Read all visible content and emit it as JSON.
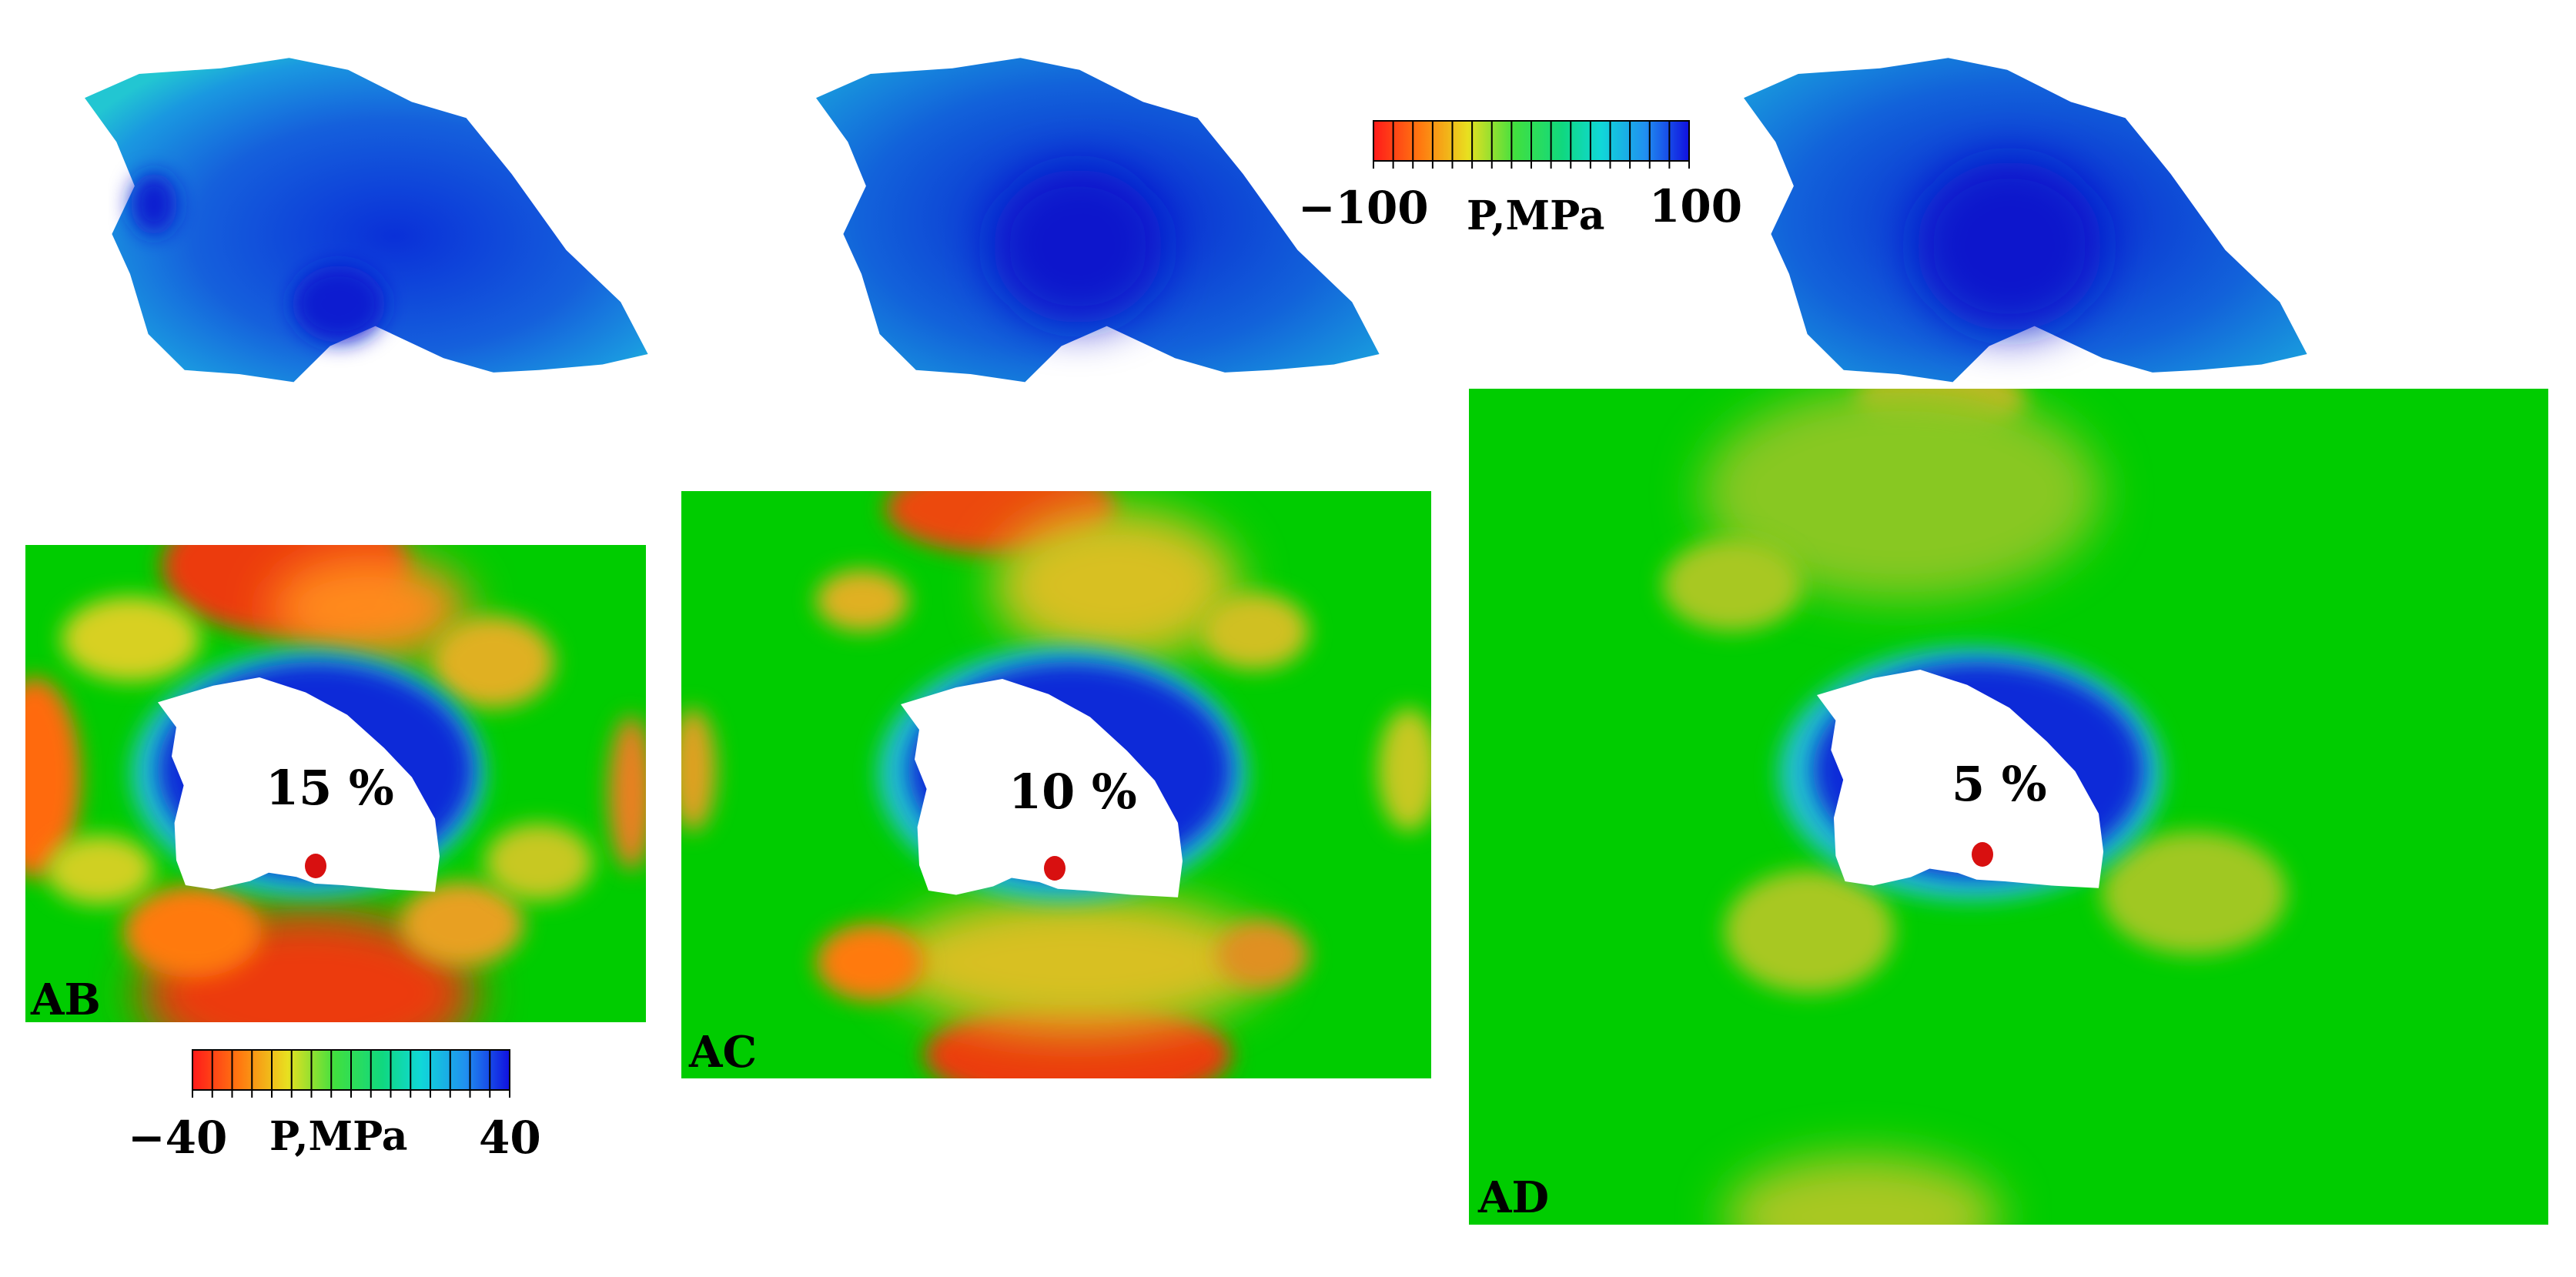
{
  "panels": [
    {
      "id": "AB",
      "label": "AB",
      "percent": "15 %"
    },
    {
      "id": "AC",
      "label": "AC",
      "percent": "10 %"
    },
    {
      "id": "AD",
      "label": "AD",
      "percent": "5 %"
    }
  ],
  "colorbar_grain": {
    "min": "−100",
    "max": "100",
    "title": "P,MPa"
  },
  "colorbar_matrix": {
    "min": "−40",
    "max": "40",
    "title": "P,MPa"
  },
  "colors": {
    "background_field": "#00cc00",
    "hole": "#ffffff",
    "blue_dark": "#0000cc",
    "blue_mid": "#1a7ae0",
    "cyan": "#22c8d8",
    "yellow": "#cccc22",
    "orange": "#f08020",
    "red": "#e82a10"
  }
}
